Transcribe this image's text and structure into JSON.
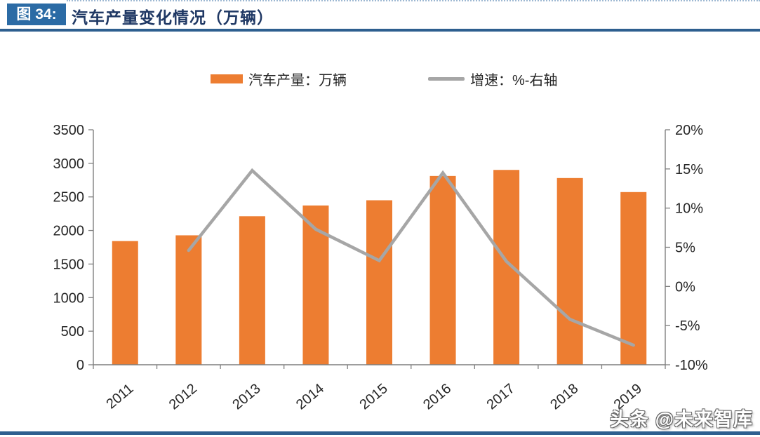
{
  "header": {
    "figure_label": "图 34:",
    "title": "汽车产量变化情况（万辆）"
  },
  "legend": {
    "items": [
      {
        "label": "汽车产量：万辆",
        "swatch": "bar",
        "color": "#ed7d31"
      },
      {
        "label": "增速：%-右轴",
        "swatch": "line",
        "color": "#a6a6a6"
      }
    ]
  },
  "watermark": "头条 @未来智库",
  "colors": {
    "bar": "#ed7d31",
    "line": "#a6a6a6",
    "axis": "#7f7f7f",
    "header_box": "#2b6ba5",
    "title_text": "#1f3864",
    "rule": "#2e5f8f"
  },
  "chart_data": {
    "type": "bar",
    "subtype": "bar+line-dual-axis",
    "title": "汽车产量变化情况（万辆）",
    "categories": [
      "2011",
      "2012",
      "2013",
      "2014",
      "2015",
      "2016",
      "2017",
      "2018",
      "2019"
    ],
    "series": [
      {
        "name": "汽车产量：万辆",
        "type": "bar",
        "axis": "left",
        "color": "#ed7d31",
        "values": [
          1842,
          1928,
          2212,
          2372,
          2450,
          2812,
          2902,
          2781,
          2572
        ]
      },
      {
        "name": "增速：%-右轴",
        "type": "line",
        "axis": "right",
        "color": "#a6a6a6",
        "values": [
          null,
          4.6,
          14.8,
          7.3,
          3.3,
          14.5,
          3.2,
          -4.2,
          -7.5
        ]
      }
    ],
    "left_axis": {
      "min": 0,
      "max": 3500,
      "step": 500,
      "tick_labels": [
        "0",
        "500",
        "1000",
        "1500",
        "2000",
        "2500",
        "3000",
        "3500"
      ]
    },
    "right_axis": {
      "min": -10,
      "max": 20,
      "step": 5,
      "tick_labels": [
        "-10%",
        "-5%",
        "0%",
        "5%",
        "10%",
        "15%",
        "20%"
      ]
    },
    "grid": false,
    "legend_position": "top"
  }
}
